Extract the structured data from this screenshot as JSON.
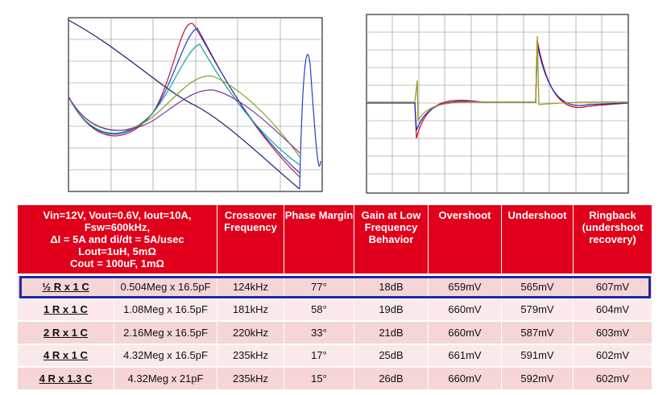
{
  "table": {
    "header": {
      "conditions": [
        "Vin=12V, Vout=0.6V, Iout=10A,",
        "Fsw=600kHz,",
        "ΔI = 5A and di/dt = 5A/usec",
        "Lout=1uH, 5mΩ",
        "Cout = 100uF, 1mΩ"
      ],
      "columns": [
        "Crossover Frequency",
        "Phase Margin",
        "Gain at Low Frequency Behavior",
        "Overshoot",
        "Undershoot",
        "Ringback (undershoot recovery)"
      ]
    },
    "rows": [
      [
        "½ R x 1 C",
        "0.504Meg x 16.5pF",
        "124kHz",
        "77°",
        "18dB",
        "659mV",
        "565mV",
        "607mV"
      ],
      [
        "1 R x 1 C",
        "1.08Meg x 16.5pF",
        "181kHz",
        "58°",
        "19dB",
        "660mV",
        "579mV",
        "604mV"
      ],
      [
        "2 R x 1 C",
        "2.16Meg x 16.5pF",
        "220kHz",
        "33°",
        "21dB",
        "660mV",
        "587mV",
        "603mV"
      ],
      [
        "4 R x 1 C",
        "4.32Meg x 16.5pF",
        "235kHz",
        "17°",
        "25dB",
        "661mV",
        "591mV",
        "602mV"
      ],
      [
        "4 R x 1.3 C",
        "4.32Meg x 21pF",
        "235kHz",
        "15°",
        "26dB",
        "660mV",
        "592mV",
        "602mV"
      ]
    ]
  }
}
